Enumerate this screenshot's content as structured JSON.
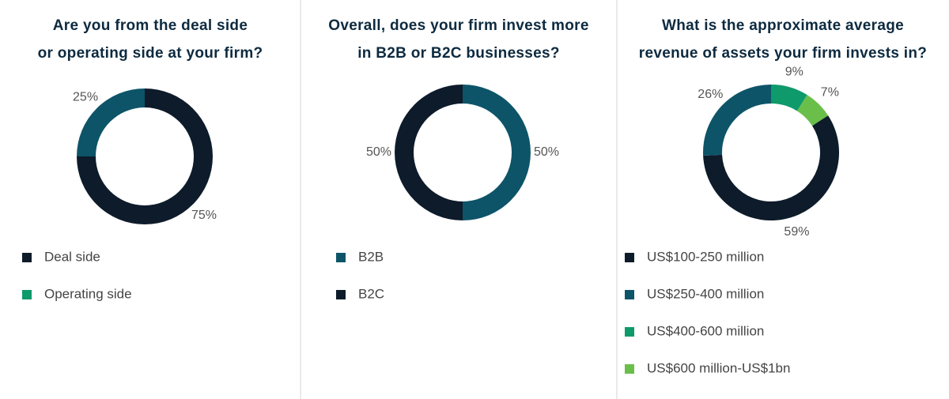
{
  "chart_data": [
    {
      "type": "donut",
      "title": [
        "Are you from the deal side",
        "or operating side at your firm?"
      ],
      "categories": [
        "Deal side",
        "Operating side"
      ],
      "values": [
        75,
        25
      ],
      "value_labels": [
        "75%",
        "25%"
      ],
      "colors": [
        "#0d1b2a",
        "#0d5468"
      ],
      "legend_colors": [
        "#0d1b2a",
        "#0e9a6b"
      ],
      "start_index": 0
    },
    {
      "type": "donut",
      "title": [
        "Overall, does your firm invest more",
        "in B2B or B2C businesses?"
      ],
      "categories": [
        "B2B",
        "B2C"
      ],
      "values": [
        50,
        50
      ],
      "value_labels": [
        "50%",
        "50%"
      ],
      "colors": [
        "#0d5468",
        "#0d1b2a"
      ],
      "start_index": 0
    },
    {
      "type": "donut",
      "title": [
        "What is the approximate average",
        "revenue of assets your firm invests in?"
      ],
      "categories": [
        "US$100-250 million",
        "US$250-400 million",
        "US$400-600 million",
        "US$600 million-US$1bn"
      ],
      "values": [
        59,
        26,
        9,
        7
      ],
      "value_labels": [
        "59%",
        "26%",
        "9%",
        "7%"
      ],
      "colors": [
        "#0d1b2a",
        "#0d5468",
        "#0e9a6b",
        "#6abf4b"
      ],
      "start_index": 2
    }
  ]
}
